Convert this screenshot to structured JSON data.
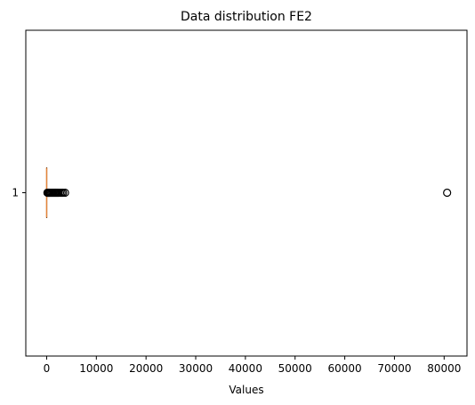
{
  "chart_data": {
    "type": "boxplot",
    "orientation": "horizontal",
    "title": "Data distribution FE2",
    "xlabel": "Values",
    "ylabel": "",
    "xlim": [
      -4200,
      84600
    ],
    "x_ticks": [
      0,
      10000,
      20000,
      30000,
      40000,
      50000,
      60000,
      70000,
      80000
    ],
    "x_tick_labels": [
      "0",
      "10000",
      "20000",
      "30000",
      "40000",
      "50000",
      "60000",
      "70000",
      "80000"
    ],
    "y_tick_labels": [
      "1"
    ],
    "grid": false,
    "series": [
      {
        "category": "1",
        "whisker_low": 0,
        "q1": 0,
        "median": 0,
        "q3": 0,
        "whisker_high": 0,
        "outliers": [
          150,
          300,
          450,
          600,
          800,
          1000,
          1200,
          1400,
          1600,
          1800,
          2000,
          2200,
          2400,
          2700,
          3000,
          3300,
          3700,
          80600
        ]
      }
    ],
    "colors": {
      "box": "#000000",
      "median": "#e4843a",
      "outlier_edge": "#000000",
      "axes": "#000000"
    }
  }
}
